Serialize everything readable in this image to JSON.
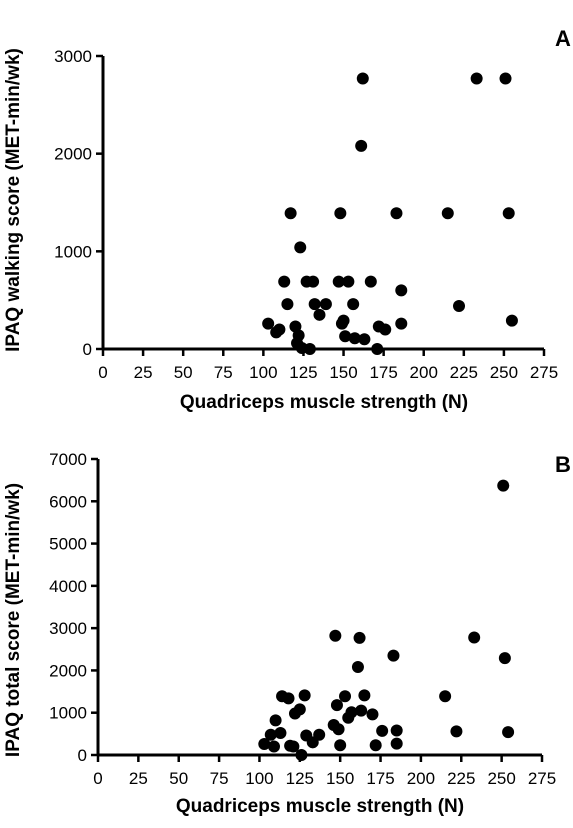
{
  "chart_data": [
    {
      "type": "scatter",
      "panel_label": "A",
      "xlabel": "Quadriceps muscle strength (N)",
      "ylabel": "IPAQ walking score (MET-min/wk)",
      "xlim": [
        0,
        275
      ],
      "ylim": [
        0,
        3000
      ],
      "xticks": [
        0,
        25,
        50,
        75,
        100,
        125,
        150,
        175,
        200,
        225,
        250,
        275
      ],
      "yticks": [
        0,
        1000,
        2000,
        3000
      ],
      "points": [
        [
          103,
          260
        ],
        [
          108,
          170
        ],
        [
          110,
          200
        ],
        [
          113,
          690
        ],
        [
          115,
          460
        ],
        [
          117,
          1390
        ],
        [
          120,
          230
        ],
        [
          121,
          60
        ],
        [
          122,
          140
        ],
        [
          123,
          1040
        ],
        [
          124,
          10
        ],
        [
          127,
          690
        ],
        [
          129,
          0
        ],
        [
          131,
          690
        ],
        [
          132,
          460
        ],
        [
          135,
          350
        ],
        [
          139,
          460
        ],
        [
          147,
          690
        ],
        [
          148,
          1390
        ],
        [
          149,
          260
        ],
        [
          150,
          290
        ],
        [
          151,
          130
        ],
        [
          153,
          690
        ],
        [
          156,
          460
        ],
        [
          157,
          110
        ],
        [
          161,
          2080
        ],
        [
          162,
          2770
        ],
        [
          163,
          100
        ],
        [
          167,
          690
        ],
        [
          171,
          0
        ],
        [
          172,
          230
        ],
        [
          176,
          200
        ],
        [
          183,
          1390
        ],
        [
          186,
          600
        ],
        [
          186,
          260
        ],
        [
          215,
          1390
        ],
        [
          222,
          440
        ],
        [
          233,
          2770
        ],
        [
          251,
          2770
        ],
        [
          253,
          1390
        ],
        [
          255,
          290
        ]
      ]
    },
    {
      "type": "scatter",
      "panel_label": "B",
      "xlabel": "Quadriceps muscle strength (N)",
      "ylabel": "IPAQ total score (MET-min/wk)",
      "xlim": [
        0,
        275
      ],
      "ylim": [
        0,
        7000
      ],
      "xticks": [
        0,
        25,
        50,
        75,
        100,
        125,
        150,
        175,
        200,
        225,
        250,
        275
      ],
      "yticks": [
        0,
        1000,
        2000,
        3000,
        4000,
        5000,
        6000,
        7000
      ],
      "points": [
        [
          103,
          260
        ],
        [
          107,
          480
        ],
        [
          109,
          200
        ],
        [
          110,
          820
        ],
        [
          113,
          520
        ],
        [
          114,
          1390
        ],
        [
          118,
          1340
        ],
        [
          119,
          220
        ],
        [
          121,
          200
        ],
        [
          122,
          980
        ],
        [
          125,
          1080
        ],
        [
          126,
          0
        ],
        [
          128,
          1410
        ],
        [
          129,
          460
        ],
        [
          133,
          300
        ],
        [
          137,
          480
        ],
        [
          146,
          710
        ],
        [
          147,
          2820
        ],
        [
          148,
          1180
        ],
        [
          149,
          610
        ],
        [
          150,
          230
        ],
        [
          153,
          1390
        ],
        [
          155,
          880
        ],
        [
          157,
          1010
        ],
        [
          161,
          2080
        ],
        [
          162,
          2770
        ],
        [
          163,
          1050
        ],
        [
          165,
          1410
        ],
        [
          170,
          960
        ],
        [
          172,
          230
        ],
        [
          176,
          570
        ],
        [
          183,
          2350
        ],
        [
          185,
          580
        ],
        [
          185,
          270
        ],
        [
          215,
          1390
        ],
        [
          222,
          560
        ],
        [
          233,
          2780
        ],
        [
          251,
          6370
        ],
        [
          252,
          2290
        ],
        [
          254,
          540
        ]
      ]
    }
  ]
}
